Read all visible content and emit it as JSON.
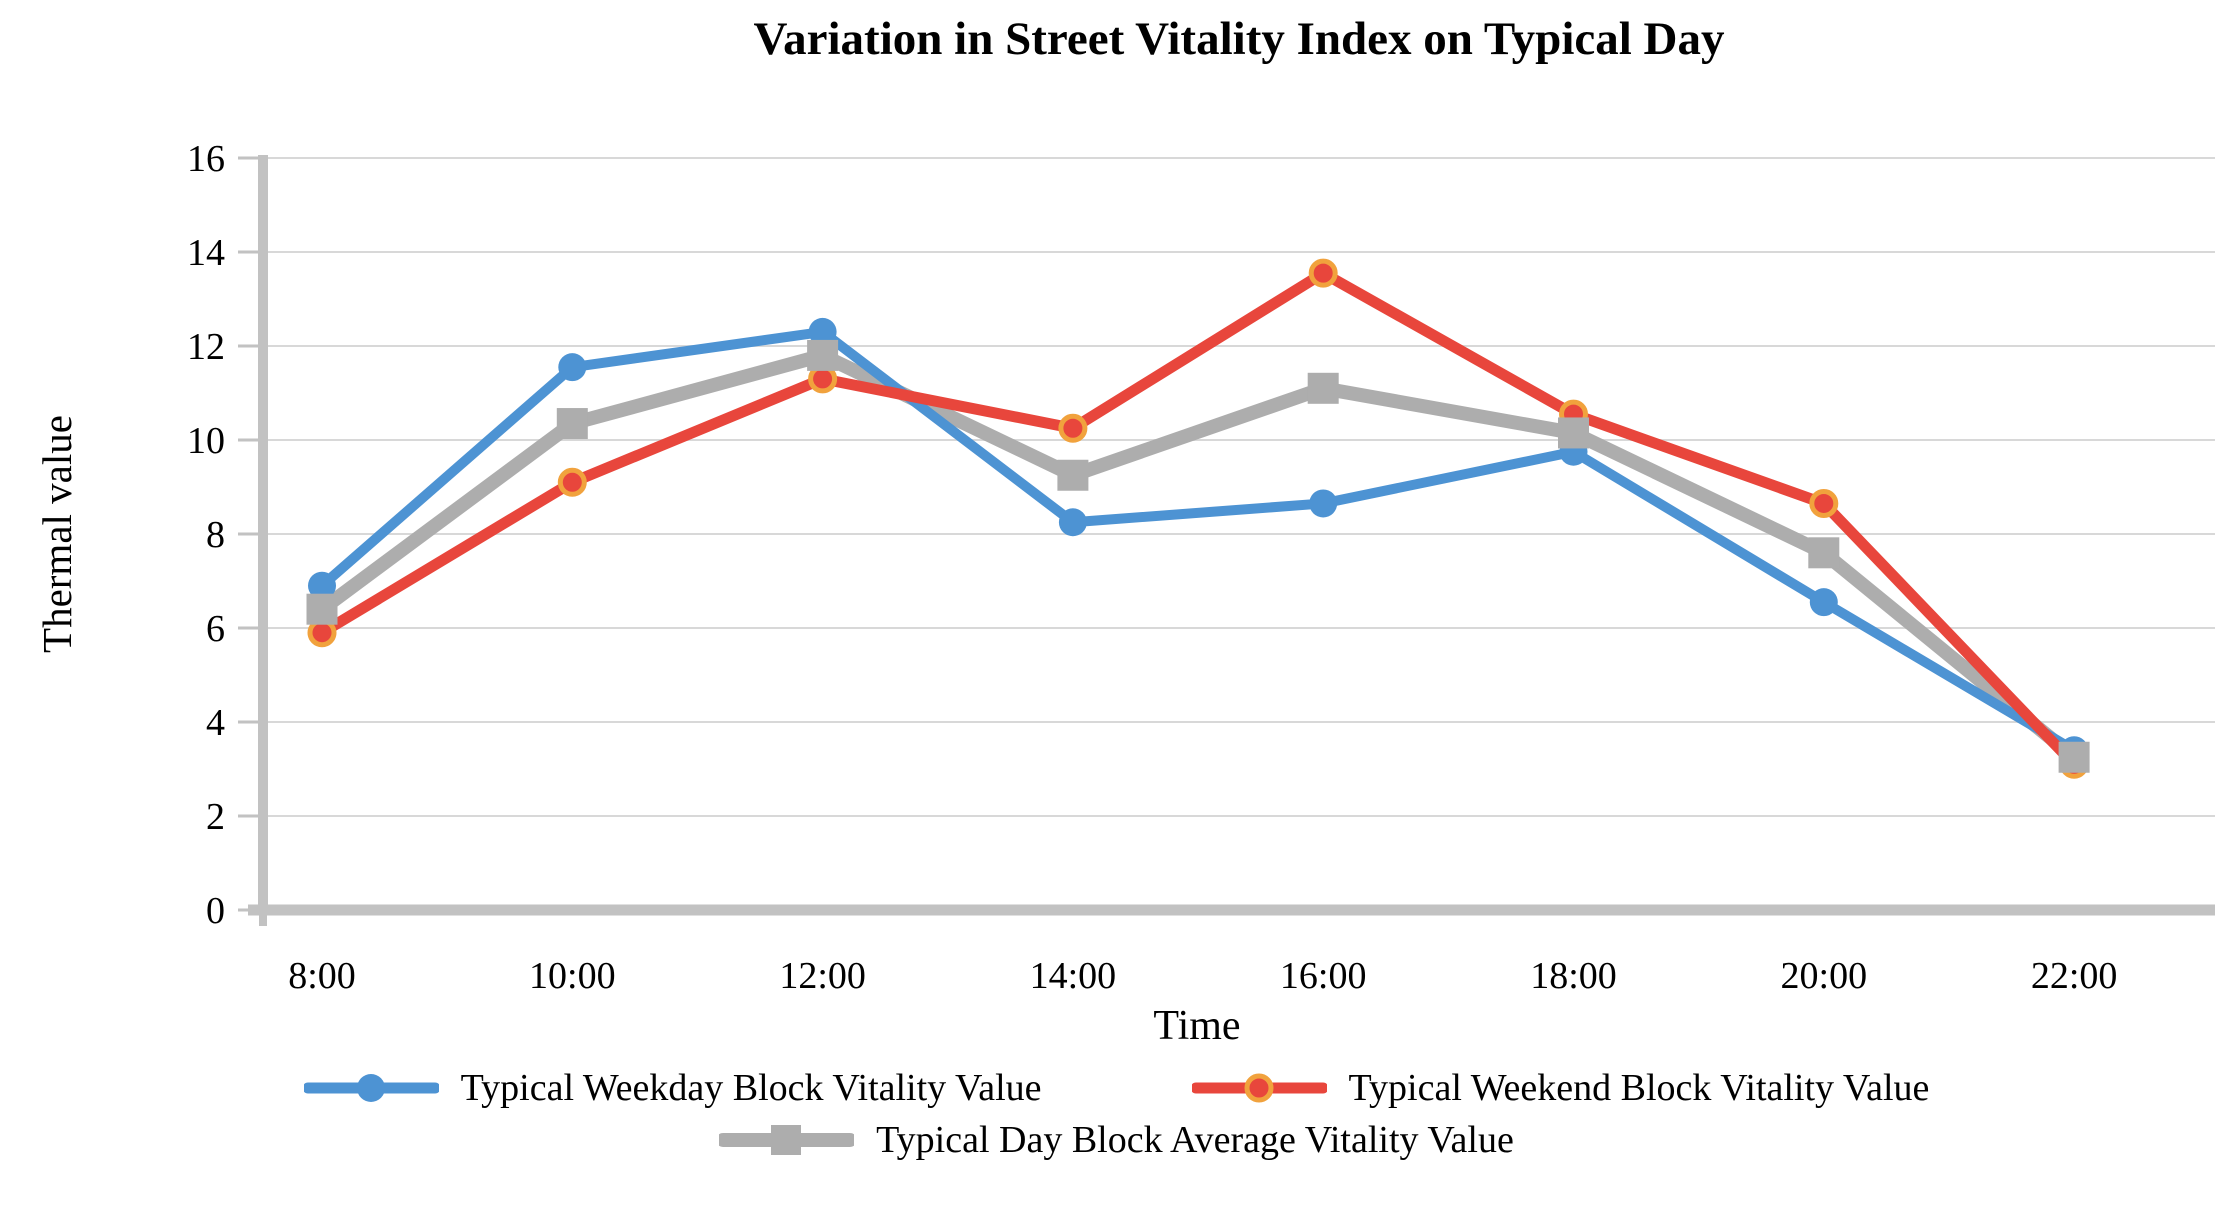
{
  "page": {
    "background": "#ffffff"
  },
  "chart_data": {
    "type": "line",
    "title": "Variation in Street Vitality Index on Typical Day",
    "xlabel": "Time",
    "ylabel": "Thermal value",
    "categories": [
      "8:00",
      "10:00",
      "12:00",
      "14:00",
      "16:00",
      "18:00",
      "20:00",
      "22:00"
    ],
    "series": [
      {
        "name": "Typical Weekday Block Vitality Value",
        "color": "#4D93D3",
        "marker": "circle",
        "values": [
          6.9,
          11.55,
          12.3,
          8.25,
          8.65,
          9.75,
          6.55,
          3.4
        ]
      },
      {
        "name": "Typical Weekend Block Vitality Value",
        "color": "#E8463C",
        "marker": "circle-ringed",
        "marker_ring_color": "#F1A23D",
        "values": [
          5.9,
          9.1,
          11.3,
          10.25,
          13.55,
          10.55,
          8.65,
          3.1
        ]
      },
      {
        "name": "Typical Day Block Average Vitality Value",
        "color": "#ADADAD",
        "marker": "square",
        "values": [
          6.4,
          10.35,
          11.8,
          9.25,
          11.1,
          10.15,
          7.6,
          3.25
        ]
      }
    ],
    "ylim": [
      0,
      16
    ],
    "yticks": [
      0,
      2,
      4,
      6,
      8,
      10,
      12,
      14,
      16
    ],
    "ytick_step": 2,
    "grid": true,
    "legend_position": "bottom",
    "gridline_color": "#D8D8D8",
    "axis_color": "#C2C2C2",
    "text_color": "#000000"
  }
}
